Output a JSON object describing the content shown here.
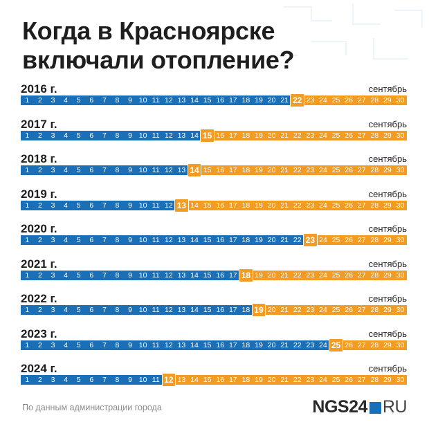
{
  "title_line1": "Когда в Красноярске",
  "title_line2": "включали отопление?",
  "month_label": "сентябрь",
  "days_in_month": 30,
  "colors": {
    "before": "#1a6fb7",
    "after": "#f39c23"
  },
  "years": [
    {
      "label": "2016 г.",
      "start_day": 22
    },
    {
      "label": "2017 г.",
      "start_day": 15
    },
    {
      "label": "2018 г.",
      "start_day": 14
    },
    {
      "label": "2019 г.",
      "start_day": 13
    },
    {
      "label": "2020 г.",
      "start_day": 23
    },
    {
      "label": "2021 г.",
      "start_day": 18
    },
    {
      "label": "2022 г.",
      "start_day": 19
    },
    {
      "label": "2023 г.",
      "start_day": 25
    },
    {
      "label": "2024 г.",
      "start_day": 12
    }
  ],
  "source": "По данным администрации города",
  "logo": {
    "part1": "NGS24",
    "part2": "RU"
  }
}
